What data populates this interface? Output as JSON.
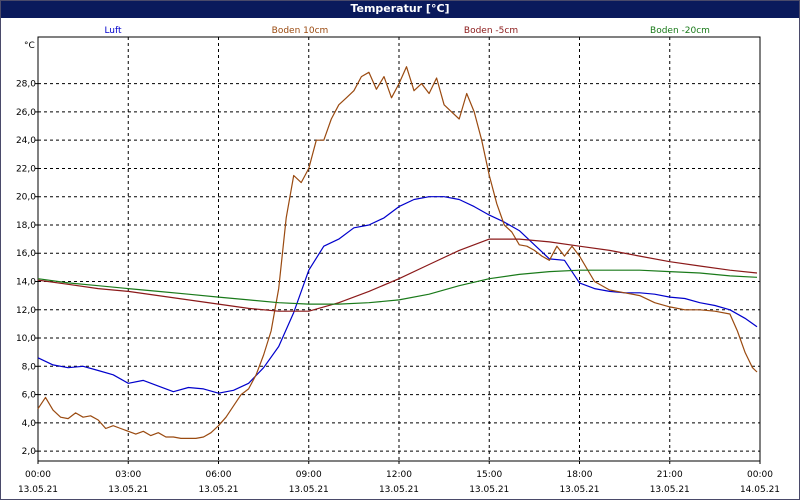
{
  "chart_data": {
    "type": "line",
    "title": "Temperatur [°C]",
    "ylabel": "°C",
    "xlabel": "",
    "ylim": [
      1.3,
      31.3
    ],
    "yticks": [
      "2,0",
      "4,0",
      "6,0",
      "8,0",
      "10,0",
      "12,0",
      "14,0",
      "16,0",
      "18,0",
      "20,0",
      "22,0",
      "24,0",
      "26,0",
      "28,0"
    ],
    "ytick_values": [
      2,
      4,
      6,
      8,
      10,
      12,
      14,
      16,
      18,
      20,
      22,
      24,
      26,
      28
    ],
    "xlim": [
      0,
      24
    ],
    "xticks": [
      {
        "time": "00:00",
        "date": "13.05.21",
        "h": 0
      },
      {
        "time": "03:00",
        "date": "13.05.21",
        "h": 3
      },
      {
        "time": "06:00",
        "date": "13.05.21",
        "h": 6
      },
      {
        "time": "09:00",
        "date": "13.05.21",
        "h": 9
      },
      {
        "time": "12:00",
        "date": "13.05.21",
        "h": 12
      },
      {
        "time": "15:00",
        "date": "13.05.21",
        "h": 15
      },
      {
        "time": "18:00",
        "date": "13.05.21",
        "h": 18
      },
      {
        "time": "21:00",
        "date": "13.05.21",
        "h": 21
      },
      {
        "time": "00:00",
        "date": "14.05.21",
        "h": 24
      }
    ],
    "grid": true,
    "legend_position": "top",
    "series": [
      {
        "name": "Luft",
        "color": "#0000cc",
        "x": [
          0,
          0.5,
          1,
          1.5,
          2,
          2.5,
          3,
          3.5,
          4,
          4.5,
          5,
          5.5,
          6,
          6.5,
          7,
          7.5,
          8,
          8.5,
          9,
          9.5,
          10,
          10.5,
          11,
          11.5,
          12,
          12.5,
          13,
          13.5,
          14,
          14.5,
          15,
          15.5,
          16,
          16.5,
          17,
          17.5,
          18,
          18.5,
          19,
          19.5,
          20,
          20.5,
          21,
          21.5,
          22,
          22.5,
          23,
          23.5,
          23.9
        ],
        "y": [
          8.6,
          8.1,
          7.9,
          8.0,
          7.7,
          7.4,
          6.8,
          7.0,
          6.6,
          6.2,
          6.5,
          6.4,
          6.1,
          6.3,
          6.8,
          7.9,
          9.4,
          11.8,
          14.8,
          16.5,
          17.0,
          17.8,
          18.0,
          18.5,
          19.3,
          19.8,
          20.0,
          20.0,
          19.8,
          19.3,
          18.7,
          18.2,
          17.6,
          16.6,
          15.6,
          15.5,
          13.9,
          13.5,
          13.3,
          13.2,
          13.2,
          13.1,
          12.9,
          12.8,
          12.5,
          12.3,
          12.0,
          11.4,
          10.8
        ]
      },
      {
        "name": "Boden 10cm",
        "color": "#9a4a10",
        "x": [
          0,
          0.25,
          0.5,
          0.75,
          1,
          1.25,
          1.5,
          1.75,
          2,
          2.25,
          2.5,
          2.75,
          3,
          3.25,
          3.5,
          3.75,
          4,
          4.25,
          4.5,
          4.75,
          5,
          5.25,
          5.5,
          5.75,
          6,
          6.25,
          6.5,
          6.75,
          7,
          7.25,
          7.5,
          7.75,
          8,
          8.25,
          8.5,
          8.75,
          9,
          9.25,
          9.5,
          9.75,
          10,
          10.25,
          10.5,
          10.75,
          11,
          11.25,
          11.5,
          11.75,
          12,
          12.25,
          12.5,
          12.75,
          13,
          13.25,
          13.5,
          13.75,
          14,
          14.25,
          14.5,
          14.75,
          15,
          15.25,
          15.5,
          15.75,
          16,
          16.25,
          16.5,
          16.75,
          17,
          17.25,
          17.5,
          17.75,
          18,
          18.5,
          19,
          19.5,
          20,
          20.5,
          21,
          21.5,
          22,
          22.5,
          23,
          23.25,
          23.5,
          23.75,
          23.9
        ],
        "y": [
          5.0,
          5.8,
          4.9,
          4.4,
          4.3,
          4.7,
          4.4,
          4.5,
          4.2,
          3.6,
          3.8,
          3.6,
          3.4,
          3.2,
          3.4,
          3.1,
          3.3,
          3.0,
          3.0,
          2.9,
          2.9,
          2.9,
          3.0,
          3.3,
          3.8,
          4.4,
          5.2,
          6.0,
          6.4,
          7.4,
          8.8,
          10.5,
          13.5,
          18.5,
          21.5,
          21.0,
          22.0,
          24.0,
          24.0,
          25.5,
          26.5,
          27.0,
          27.5,
          28.5,
          28.8,
          27.6,
          28.5,
          27.0,
          28.0,
          29.2,
          27.5,
          28.0,
          27.3,
          28.4,
          26.5,
          26.0,
          25.5,
          27.3,
          26.0,
          24.0,
          21.5,
          19.5,
          18.0,
          17.5,
          16.6,
          16.5,
          16.2,
          15.8,
          15.5,
          16.5,
          15.8,
          16.5,
          15.8,
          14.0,
          13.4,
          13.2,
          13.0,
          12.5,
          12.2,
          12.0,
          12.0,
          11.9,
          11.7,
          10.5,
          9.0,
          7.9,
          7.6
        ]
      },
      {
        "name": "Boden -5cm",
        "color": "#8b1a1a",
        "x": [
          0,
          1,
          2,
          3,
          4,
          5,
          6,
          7,
          8,
          9,
          10,
          11,
          12,
          13,
          14,
          15,
          16,
          17,
          18,
          19,
          20,
          21,
          22,
          23,
          23.9
        ],
        "y": [
          14.1,
          13.8,
          13.5,
          13.3,
          13.0,
          12.7,
          12.4,
          12.1,
          11.9,
          11.9,
          12.5,
          13.3,
          14.2,
          15.2,
          16.2,
          17.0,
          17.0,
          16.8,
          16.5,
          16.2,
          15.8,
          15.4,
          15.1,
          14.8,
          14.6
        ]
      },
      {
        "name": "Boden -20cm",
        "color": "#1a7a1a",
        "x": [
          0,
          1,
          2,
          3,
          4,
          5,
          6,
          7,
          8,
          9,
          10,
          11,
          12,
          13,
          14,
          15,
          16,
          17,
          18,
          19,
          20,
          21,
          22,
          23,
          23.9
        ],
        "y": [
          14.2,
          13.9,
          13.7,
          13.5,
          13.3,
          13.1,
          12.9,
          12.7,
          12.5,
          12.4,
          12.4,
          12.5,
          12.7,
          13.1,
          13.7,
          14.2,
          14.5,
          14.7,
          14.8,
          14.8,
          14.8,
          14.7,
          14.6,
          14.4,
          14.3
        ]
      }
    ]
  }
}
